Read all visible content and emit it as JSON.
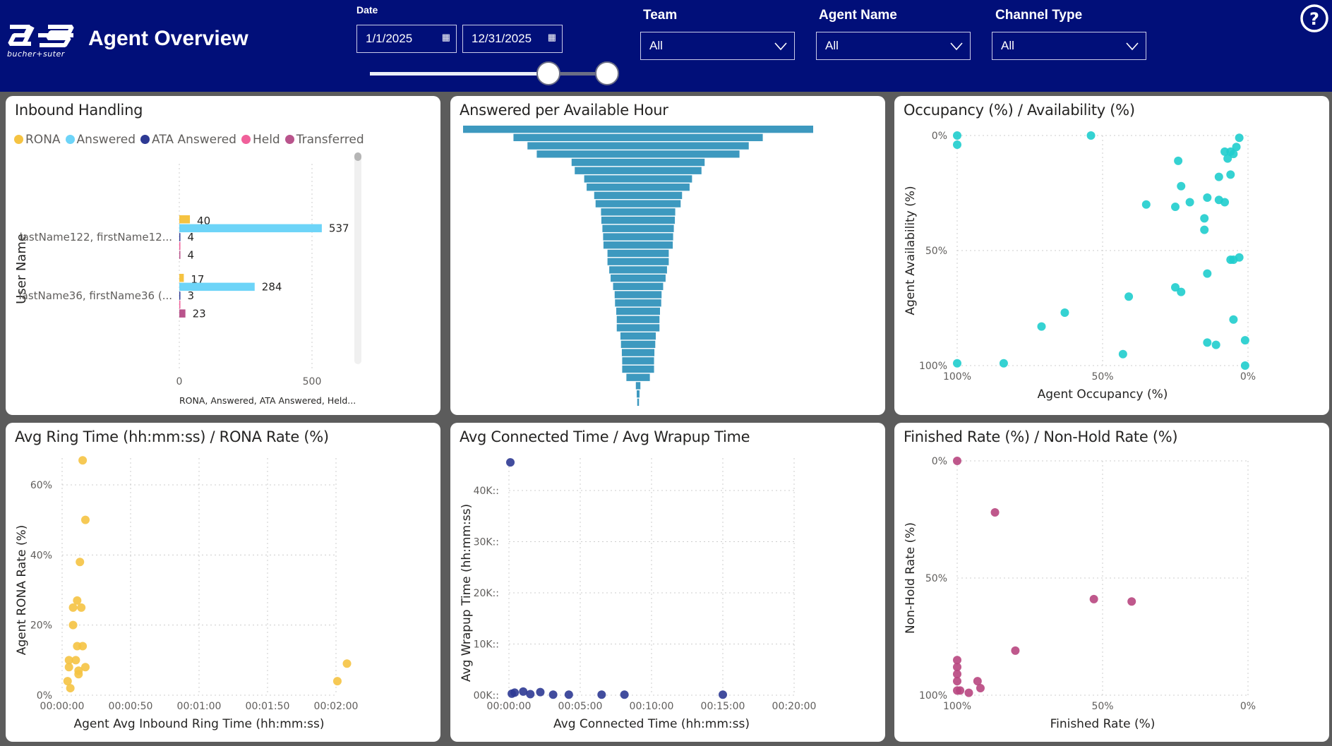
{
  "header": {
    "logo_text": "bucher+suter",
    "title": "Agent Overview",
    "help_icon": "question-circle-icon",
    "date": {
      "label": "Date",
      "start": "1/1/2025",
      "end": "12/31/2025",
      "calendar_icon": "calendar-icon",
      "slider_range_fraction": [
        0.75,
        1.0
      ]
    },
    "filters": [
      {
        "label": "Team",
        "value": "All"
      },
      {
        "label": "Agent Name",
        "value": "All"
      },
      {
        "label": "Channel Type",
        "value": "All"
      }
    ]
  },
  "colors": {
    "header_bg": "#010f79",
    "rona": "#f5c342",
    "answered": "#6dd4f8",
    "ata_answered": "#2e3a94",
    "held": "#f0609a",
    "transferred": "#b9548c",
    "funnel": "#3d99bf",
    "occupancy": "#1fcdcd",
    "ring": "#f5c342",
    "connected": "#2e3a94",
    "finished": "#b8467f"
  },
  "chart_data": [
    {
      "id": "inbound",
      "type": "bar",
      "orientation": "horizontal",
      "title": "Inbound Handling",
      "ylabel": "User Name",
      "xlabel": "RONA, Answered, ATA Answered, Held...",
      "xticks": [
        "0",
        "500"
      ],
      "xlim": [
        0,
        600
      ],
      "categories": [
        "lastName122, firstName12...",
        "lastName36, firstName36 (..."
      ],
      "series": [
        {
          "name": "RONA",
          "values": [
            40,
            17
          ],
          "labels": [
            "40",
            "17"
          ]
        },
        {
          "name": "Answered",
          "values": [
            537,
            284
          ],
          "labels": [
            "537",
            "284"
          ]
        },
        {
          "name": "ATA Answered",
          "values": [
            4,
            3
          ],
          "labels": [
            "4",
            "3"
          ]
        },
        {
          "name": "Held",
          "values": [
            4,
            4
          ],
          "labels": [
            "",
            ""
          ]
        },
        {
          "name": "Transferred",
          "values": [
            4,
            23
          ],
          "labels": [
            "4",
            "23"
          ]
        }
      ],
      "legend": "top-left",
      "grid": true
    },
    {
      "id": "funnel",
      "type": "funnel",
      "title": "Answered per Available Hour",
      "values": [
        100,
        71.2,
        63.2,
        57.9,
        38.0,
        36.2,
        30.8,
        29.4,
        25.1,
        24.3,
        21.2,
        21.0,
        20.4,
        20.0,
        19.8,
        17.5,
        17.5,
        16.5,
        15.7,
        14.3,
        13.4,
        13.2,
        12.5,
        12.2,
        12.2,
        10.1,
        9.8,
        9.3,
        9.1,
        9.1,
        6.7,
        1.3,
        0.8,
        0.5
      ]
    },
    {
      "id": "occupancy",
      "type": "scatter",
      "title": "Occupancy (%) / Availability (%)",
      "xlabel": "Agent Occupancy (%)",
      "ylabel": "Agent Availability (%)",
      "xticks": [
        "100%",
        "50%",
        "0%"
      ],
      "yticks": [
        "0%",
        "50%",
        "100%"
      ],
      "xlim": [
        100,
        0
      ],
      "ylim": [
        0,
        100
      ],
      "reversed_axes": true,
      "grid": true,
      "points": [
        [
          100,
          0
        ],
        [
          100,
          4
        ],
        [
          54,
          0
        ],
        [
          3,
          1
        ],
        [
          4,
          5
        ],
        [
          8,
          7
        ],
        [
          6,
          7
        ],
        [
          5,
          8
        ],
        [
          7,
          10
        ],
        [
          24,
          11
        ],
        [
          6,
          17
        ],
        [
          10,
          18
        ],
        [
          23,
          22
        ],
        [
          14,
          27
        ],
        [
          10,
          28
        ],
        [
          8,
          29
        ],
        [
          20,
          29
        ],
        [
          35,
          30
        ],
        [
          25,
          31
        ],
        [
          15,
          36
        ],
        [
          15,
          41
        ],
        [
          6,
          54
        ],
        [
          5,
          54
        ],
        [
          3,
          53
        ],
        [
          14,
          60
        ],
        [
          25,
          66
        ],
        [
          23,
          68
        ],
        [
          41,
          70
        ],
        [
          63,
          77
        ],
        [
          71,
          83
        ],
        [
          5,
          80
        ],
        [
          14,
          90
        ],
        [
          11,
          91
        ],
        [
          1,
          89
        ],
        [
          43,
          95
        ],
        [
          100,
          99
        ],
        [
          84,
          99
        ],
        [
          1,
          100
        ]
      ]
    },
    {
      "id": "ring",
      "type": "scatter",
      "title": "Avg Ring Time (hh:mm:ss) / RONA Rate (%)",
      "xlabel": "Agent Avg Inbound Ring Time (hh:mm:ss)",
      "ylabel": "Agent RONA Rate (%)",
      "xticks": [
        "00:00:00",
        "00:00:50",
        "00:01:00",
        "00:01:50",
        "00:02:00"
      ],
      "yticks": [
        "0%",
        "20%",
        "40%",
        "60%"
      ],
      "xlim_seconds": [
        0,
        200
      ],
      "ylim": [
        0,
        67
      ],
      "grid": true,
      "points_seconds_percent": [
        [
          15,
          67
        ],
        [
          17,
          50
        ],
        [
          13,
          38
        ],
        [
          11,
          27
        ],
        [
          8,
          25
        ],
        [
          14,
          25
        ],
        [
          8,
          20
        ],
        [
          11,
          14
        ],
        [
          15,
          14
        ],
        [
          5,
          10
        ],
        [
          10,
          10
        ],
        [
          5,
          8
        ],
        [
          12,
          7
        ],
        [
          17,
          8
        ],
        [
          12,
          6
        ],
        [
          4,
          4
        ],
        [
          6,
          2
        ],
        [
          201,
          4
        ],
        [
          208,
          9
        ]
      ]
    },
    {
      "id": "connected",
      "type": "scatter",
      "title": "Avg Connected Time / Avg Wrapup Time",
      "xlabel": "Avg Connected Time (hh:mm:ss)",
      "ylabel": "Avg Wrapup Time (hh:mm:ss)",
      "xticks": [
        "00:00:00",
        "00:05:00",
        "00:10:00",
        "00:15:00",
        "00:20:00"
      ],
      "yticks": [
        "00K::",
        "10K::",
        "20K::",
        "30K::",
        "40K::"
      ],
      "xlim": [
        "00:00:00",
        "00:20:00"
      ],
      "ylim": [
        0,
        45500
      ],
      "grid": true,
      "points": [
        [
          "00:00:06",
          45500
        ],
        [
          "00:00:12",
          300
        ],
        [
          "00:00:24",
          500
        ],
        [
          "00:01:00",
          700
        ],
        [
          "00:01:30",
          200
        ],
        [
          "00:02:12",
          600
        ],
        [
          "00:03:06",
          100
        ],
        [
          "00:04:12",
          100
        ],
        [
          "00:06:30",
          100
        ],
        [
          "00:08:06",
          100
        ],
        [
          "00:15:00",
          100
        ]
      ]
    },
    {
      "id": "finished",
      "type": "scatter",
      "title": "Finished Rate (%) / Non-Hold Rate (%)",
      "xlabel": "Finished Rate (%)",
      "ylabel": "Non-Hold Rate (%)",
      "xticks": [
        "100%",
        "50%",
        "0%"
      ],
      "yticks": [
        "0%",
        "50%",
        "100%"
      ],
      "xlim": [
        100,
        0
      ],
      "ylim": [
        0,
        100
      ],
      "reversed_axes": true,
      "grid": true,
      "points": [
        [
          100,
          0
        ],
        [
          87,
          22
        ],
        [
          53,
          59
        ],
        [
          40,
          60
        ],
        [
          80,
          81
        ],
        [
          100,
          85
        ],
        [
          100,
          88
        ],
        [
          100,
          91
        ],
        [
          100,
          94
        ],
        [
          93,
          94
        ],
        [
          92,
          97
        ],
        [
          99,
          98
        ],
        [
          96,
          99
        ],
        [
          100,
          98
        ]
      ]
    }
  ]
}
